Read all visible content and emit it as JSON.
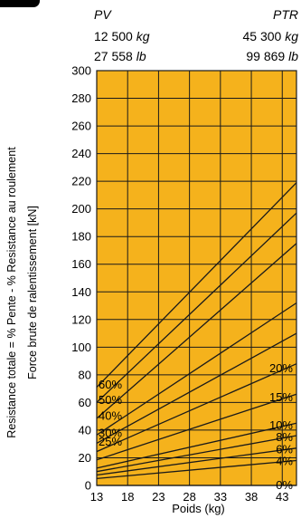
{
  "header": {
    "left": {
      "label": "PV",
      "kg_value": "12 500",
      "kg_unit": "kg",
      "lb_value": "27 558",
      "lb_unit": "lb"
    },
    "right": {
      "label": "PTR",
      "kg_value": "45 300",
      "kg_unit": "kg",
      "lb_value": "99 869",
      "lb_unit": "lb"
    }
  },
  "chart_data": {
    "type": "line",
    "title": "",
    "xlabel": "Poids (kg)",
    "ylabel_outer": "Resistance totale = % Pente - % Resistance au roulement",
    "ylabel_inner": "Force brute de ralentissement [kN]",
    "xlim": [
      13,
      45.3
    ],
    "ylim": [
      0,
      300
    ],
    "x_ticks": [
      13,
      18,
      23,
      28,
      33,
      38,
      43
    ],
    "y_ticks": [
      0,
      20,
      40,
      60,
      80,
      100,
      120,
      140,
      160,
      180,
      200,
      220,
      240,
      260,
      280,
      300
    ],
    "grid": true,
    "background_color": "#f5b21c",
    "line_color": "#1a1a1a",
    "series": [
      {
        "name": "0%",
        "x": [
          13,
          45.3
        ],
        "y": [
          0,
          0
        ]
      },
      {
        "name": "4%",
        "x": [
          13,
          45.3
        ],
        "y": [
          5,
          18
        ]
      },
      {
        "name": "6%",
        "x": [
          13,
          45.3
        ],
        "y": [
          7.5,
          27
        ]
      },
      {
        "name": "8%",
        "x": [
          13,
          45.3
        ],
        "y": [
          10,
          36
        ]
      },
      {
        "name": "10%",
        "x": [
          13,
          45.3
        ],
        "y": [
          12.5,
          45
        ]
      },
      {
        "name": "15%",
        "x": [
          13,
          45.3
        ],
        "y": [
          18.5,
          66
        ]
      },
      {
        "name": "20%",
        "x": [
          13,
          45.3
        ],
        "y": [
          24.5,
          88
        ]
      },
      {
        "name": "25%",
        "x": [
          13,
          45.3
        ],
        "y": [
          30.5,
          110
        ]
      },
      {
        "name": "30%",
        "x": [
          13,
          45.3
        ],
        "y": [
          36.5,
          132
        ]
      },
      {
        "name": "40%",
        "x": [
          13,
          45.3
        ],
        "y": [
          48.5,
          175
        ]
      },
      {
        "name": "50%",
        "x": [
          13,
          45.3
        ],
        "y": [
          60,
          197
        ]
      },
      {
        "name": "60%",
        "x": [
          13,
          45.3
        ],
        "y": [
          71,
          219
        ]
      }
    ],
    "left_labels": [
      "60%",
      "50%",
      "40%",
      "30%",
      "25%"
    ],
    "right_labels": [
      "20%",
      "15%",
      "10%",
      "8%",
      "6%",
      "4%",
      "0%"
    ]
  }
}
